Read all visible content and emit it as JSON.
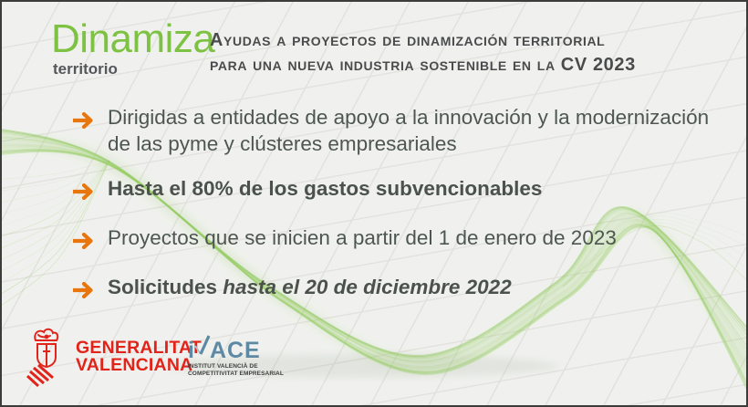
{
  "colors": {
    "accent_green": "#7dc242",
    "arrow_orange": "#e8760e",
    "gva_red": "#e2231a",
    "ivace_blue": "#5d89a4",
    "body_text": "#4d564f",
    "title_text": "#4a4b4c"
  },
  "brand": {
    "name": "Dinamiza",
    "tagline": "territorio"
  },
  "header": {
    "title_line1": "Ayudas a proyectos de dinamización territorial",
    "title_line2": "para una nueva industria sostenible en la CV 2023"
  },
  "bullets": [
    {
      "text": "Dirigidas a entidades de apoyo a la innovación y la modernización de las pyme y clústeres empresariales"
    },
    {
      "text": "Hasta el 80% de los gastos subvencionables"
    },
    {
      "text": "Proyectos que se inicien a partir del 1 de enero de 2023"
    },
    {
      "prefix": "Solicitudes ",
      "deadline": "hasta el 20 de diciembre 2022"
    }
  ],
  "footer": {
    "generalitat": {
      "line1": "GENERALITAT",
      "line2": "VALENCIANA"
    },
    "ivace": {
      "letter_i": "i",
      "letters_rest": "ACE",
      "subtitle_line1": "INSTITUT VALENCIÀ DE",
      "subtitle_line2": "COMPETITIVITAT EMPRESARIAL"
    }
  }
}
